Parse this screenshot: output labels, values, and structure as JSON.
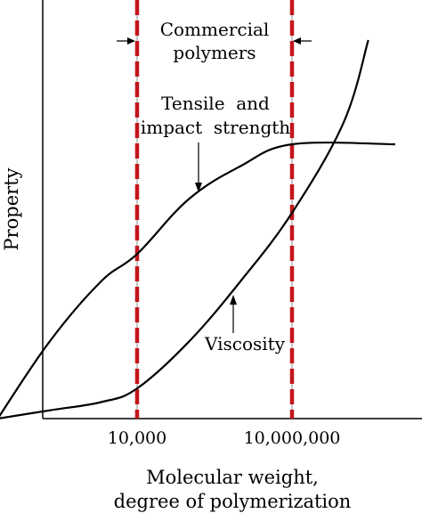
{
  "chart_data": {
    "type": "line",
    "title": "",
    "xlabel_lines": [
      "Molecular weight,",
      "degree of polymerization"
    ],
    "ylabel": "Property",
    "x_scale": "log",
    "x_ticks": [
      {
        "value": 10000,
        "label": "10,000"
      },
      {
        "value": 10000000,
        "label": "10,000,000"
      }
    ],
    "commercial_range": {
      "label_lines": [
        "Commercial",
        "polymers"
      ],
      "from": 10000,
      "to": 10000000
    },
    "series": [
      {
        "name": "Tensile and impact strength",
        "label_lines": [
          "Tensile  and",
          "impact  strength"
        ],
        "points": [
          [
            20,
            0.0
          ],
          [
            200,
            0.28
          ],
          [
            2000,
            0.5
          ],
          [
            10000,
            0.6
          ],
          [
            100000,
            0.8
          ],
          [
            1000000,
            0.92
          ],
          [
            10000000,
            1.0
          ],
          [
            1000000000,
            1.0
          ]
        ]
      },
      {
        "name": "Viscosity",
        "label_lines": [
          "Viscosity"
        ],
        "points": [
          [
            20,
            0.0
          ],
          [
            200,
            0.03
          ],
          [
            2000,
            0.06
          ],
          [
            10000,
            0.11
          ],
          [
            100000,
            0.28
          ],
          [
            1000000,
            0.5
          ],
          [
            10000000,
            0.75
          ],
          [
            100000000,
            1.08
          ],
          [
            300000000,
            1.38
          ]
        ]
      }
    ],
    "colors": {
      "curve": "#000000",
      "boundary_dash": "#c4161c",
      "boundary_center": "#8c8c8c"
    }
  }
}
